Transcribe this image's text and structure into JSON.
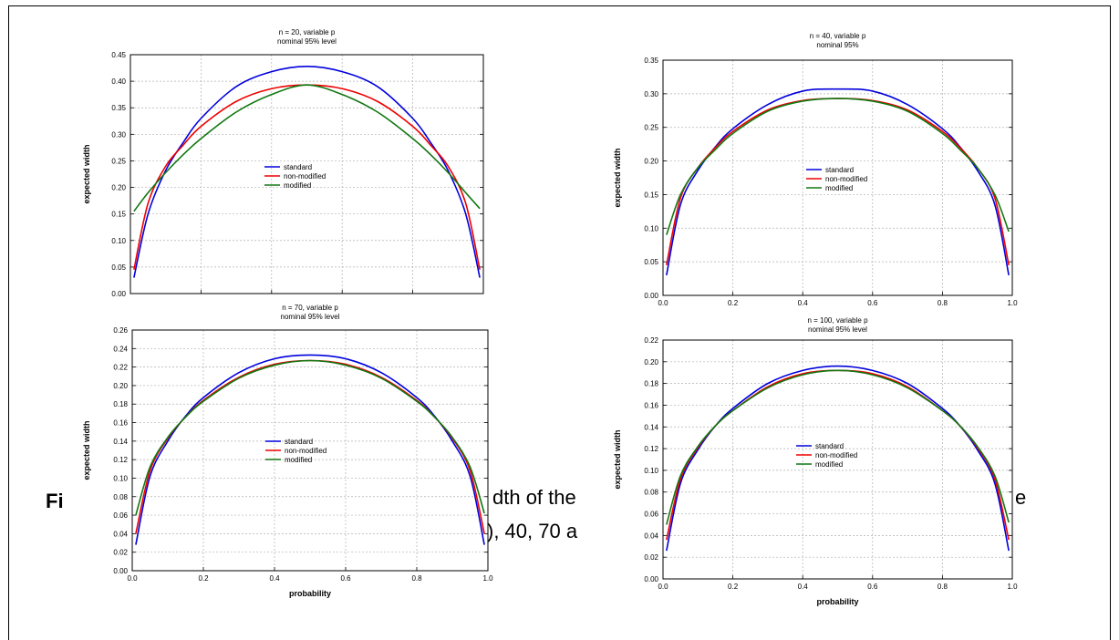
{
  "caption": {
    "fragment_1": "Fi",
    "fragment_2": "dth of the",
    "fragment_3": "e",
    "fragment_4": "), 40, 70 a"
  },
  "legend_labels": [
    "standard",
    "non-modified",
    "modified"
  ],
  "colors": {
    "standard": "#0000dd",
    "non_modified": "#ee0000",
    "modified": "#117711",
    "grid": "#b0b0b0"
  },
  "chart_data": [
    {
      "type": "line",
      "title": "n = 20, variable p",
      "subtitle": "nominal 95%  level",
      "xlabel": "",
      "ylabel": "expected width",
      "xlim": [
        0.0,
        1.0
      ],
      "ylim": [
        0.0,
        0.45
      ],
      "x_ticks": [],
      "y_ticks": [
        "0.00",
        "0.05",
        "0.10",
        "0.15",
        "0.20",
        "0.25",
        "0.30",
        "0.35",
        "0.40",
        "0.45"
      ],
      "grid": true,
      "legend": "center",
      "x": [
        0.01,
        0.05,
        0.1,
        0.15,
        0.2,
        0.3,
        0.4,
        0.5,
        0.6,
        0.7,
        0.8,
        0.85,
        0.9,
        0.95,
        0.99
      ],
      "series": [
        {
          "name": "standard",
          "values": [
            0.03,
            0.15,
            0.232,
            0.285,
            0.33,
            0.39,
            0.418,
            0.428,
            0.418,
            0.39,
            0.33,
            0.285,
            0.232,
            0.15,
            0.03
          ]
        },
        {
          "name": "non-modified",
          "values": [
            0.045,
            0.17,
            0.24,
            0.28,
            0.315,
            0.362,
            0.386,
            0.393,
            0.386,
            0.362,
            0.315,
            0.28,
            0.24,
            0.17,
            0.045
          ]
        },
        {
          "name": "modified",
          "values": [
            0.155,
            0.19,
            0.228,
            0.262,
            0.292,
            0.342,
            0.375,
            0.393,
            0.375,
            0.342,
            0.292,
            0.262,
            0.228,
            0.19,
            0.16
          ]
        }
      ]
    },
    {
      "type": "line",
      "title": "n = 40, variable p",
      "subtitle": "nominal 95%",
      "xlabel": "",
      "ylabel": "expected width",
      "xlim": [
        0.0,
        1.0
      ],
      "ylim": [
        0.0,
        0.35
      ],
      "x_ticks": [
        "0.0",
        "0.2",
        "0.4",
        "0.6",
        "0.8",
        "1.0"
      ],
      "y_ticks": [
        "0.00",
        "0.05",
        "0.10",
        "0.15",
        "0.20",
        "0.25",
        "0.30",
        "0.35"
      ],
      "grid": true,
      "legend": "center-right",
      "x": [
        0.01,
        0.05,
        0.1,
        0.15,
        0.2,
        0.3,
        0.4,
        0.5,
        0.6,
        0.7,
        0.8,
        0.85,
        0.9,
        0.95,
        0.99
      ],
      "series": [
        {
          "name": "standard",
          "values": [
            0.03,
            0.135,
            0.186,
            0.221,
            0.248,
            0.284,
            0.304,
            0.307,
            0.304,
            0.284,
            0.248,
            0.221,
            0.186,
            0.135,
            0.03
          ]
        },
        {
          "name": "non-modified",
          "values": [
            0.045,
            0.145,
            0.19,
            0.22,
            0.244,
            0.276,
            0.29,
            0.293,
            0.29,
            0.276,
            0.244,
            0.22,
            0.19,
            0.145,
            0.045
          ]
        },
        {
          "name": "modified",
          "values": [
            0.09,
            0.15,
            0.19,
            0.217,
            0.241,
            0.274,
            0.289,
            0.293,
            0.289,
            0.274,
            0.241,
            0.217,
            0.19,
            0.15,
            0.095
          ]
        }
      ]
    },
    {
      "type": "line",
      "title": "n = 70, variable p",
      "subtitle": "nominal 95%  level",
      "xlabel": "probability",
      "ylabel": "expected width",
      "xlim": [
        0.0,
        1.0
      ],
      "ylim": [
        0.0,
        0.26
      ],
      "x_ticks": [
        "0.0",
        "0.2",
        "0.4",
        "0.6",
        "0.8",
        "1.0"
      ],
      "y_ticks": [
        "0.00",
        "0.02",
        "0.04",
        "0.06",
        "0.08",
        "0.10",
        "0.12",
        "0.14",
        "0.16",
        "0.18",
        "0.20",
        "0.22",
        "0.24",
        "0.26"
      ],
      "grid": true,
      "legend": "center",
      "x": [
        0.01,
        0.05,
        0.1,
        0.15,
        0.2,
        0.3,
        0.4,
        0.5,
        0.6,
        0.7,
        0.8,
        0.85,
        0.9,
        0.95,
        0.99
      ],
      "series": [
        {
          "name": "standard",
          "values": [
            0.028,
            0.102,
            0.14,
            0.167,
            0.187,
            0.214,
            0.229,
            0.233,
            0.229,
            0.214,
            0.187,
            0.167,
            0.14,
            0.102,
            0.028
          ]
        },
        {
          "name": "non-modified",
          "values": [
            0.04,
            0.108,
            0.143,
            0.166,
            0.184,
            0.209,
            0.223,
            0.227,
            0.223,
            0.209,
            0.184,
            0.166,
            0.143,
            0.108,
            0.04
          ]
        },
        {
          "name": "modified",
          "values": [
            0.06,
            0.112,
            0.144,
            0.166,
            0.183,
            0.208,
            0.222,
            0.227,
            0.222,
            0.208,
            0.183,
            0.166,
            0.144,
            0.112,
            0.062
          ]
        }
      ]
    },
    {
      "type": "line",
      "title": "n = 100, variable p",
      "subtitle": "nominal 95%  level",
      "xlabel": "probability",
      "ylabel": "expected width",
      "xlim": [
        0.0,
        1.0
      ],
      "ylim": [
        0.0,
        0.22
      ],
      "x_ticks": [
        "0.0",
        "0.2",
        "0.4",
        "0.6",
        "0.8",
        "1.0"
      ],
      "y_ticks": [
        "0.00",
        "0.02",
        "0.04",
        "0.06",
        "0.08",
        "0.10",
        "0.12",
        "0.14",
        "0.16",
        "0.18",
        "0.20",
        "0.22"
      ],
      "grid": true,
      "legend": "center-right",
      "x": [
        0.01,
        0.05,
        0.1,
        0.15,
        0.2,
        0.3,
        0.4,
        0.5,
        0.6,
        0.7,
        0.8,
        0.85,
        0.9,
        0.95,
        0.99
      ],
      "series": [
        {
          "name": "standard",
          "values": [
            0.026,
            0.088,
            0.119,
            0.141,
            0.157,
            0.18,
            0.192,
            0.196,
            0.192,
            0.18,
            0.157,
            0.141,
            0.119,
            0.088,
            0.026
          ]
        },
        {
          "name": "non-modified",
          "values": [
            0.036,
            0.092,
            0.121,
            0.141,
            0.155,
            0.177,
            0.189,
            0.192,
            0.189,
            0.177,
            0.155,
            0.141,
            0.121,
            0.092,
            0.036
          ]
        },
        {
          "name": "modified",
          "values": [
            0.05,
            0.095,
            0.122,
            0.141,
            0.155,
            0.176,
            0.188,
            0.192,
            0.188,
            0.176,
            0.155,
            0.141,
            0.122,
            0.095,
            0.052
          ]
        }
      ]
    }
  ]
}
